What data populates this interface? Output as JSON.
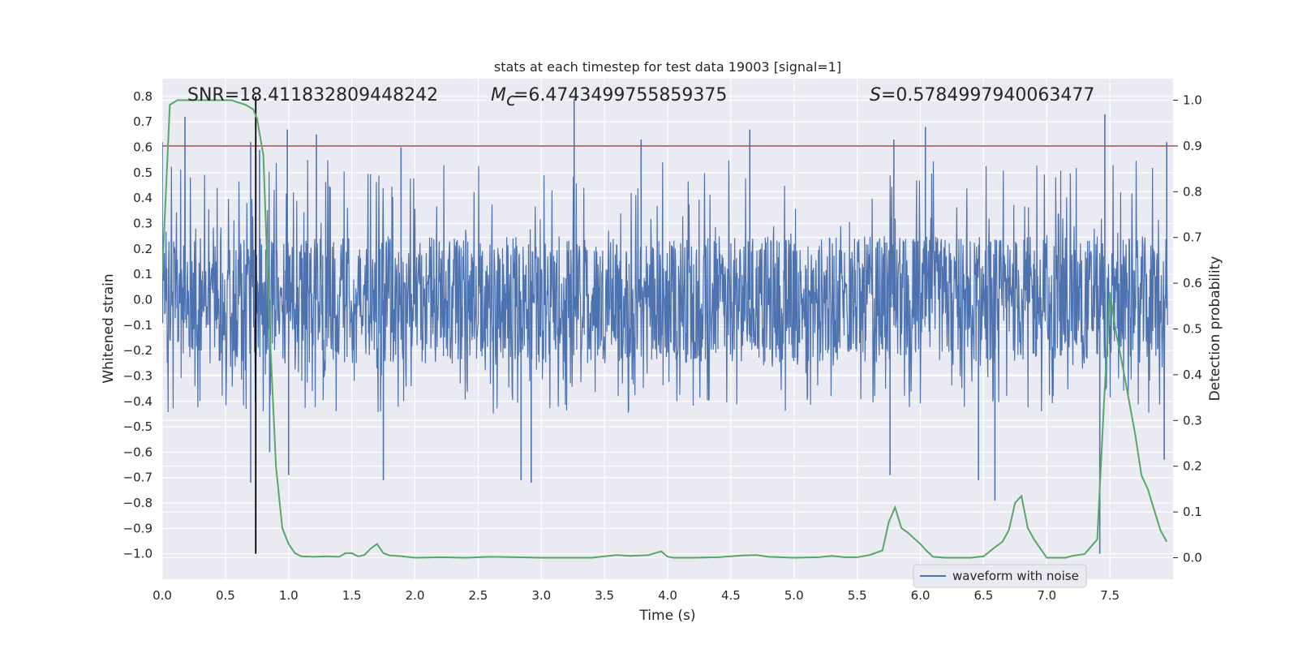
{
  "chart_data": {
    "type": "line",
    "title": "stats at each timestep for test data 19003 [signal=1]",
    "xlabel": "Time (s)",
    "ylabel": "Whitened strain",
    "y2label": "Detection probability",
    "xlim": [
      0.0,
      8.0
    ],
    "ylim": [
      -1.1,
      0.87
    ],
    "y2lim": [
      -0.047,
      1.047
    ],
    "grid": true,
    "xticks": [
      "0.0",
      "0.5",
      "1.0",
      "1.5",
      "2.0",
      "2.5",
      "3.0",
      "3.5",
      "4.0",
      "4.5",
      "5.0",
      "5.5",
      "6.0",
      "6.5",
      "7.0",
      "7.5"
    ],
    "yticks": [
      "0.8",
      "0.7",
      "0.6",
      "0.5",
      "0.4",
      "0.3",
      "0.2",
      "0.1",
      "0.0",
      "−0.1",
      "−0.2",
      "−0.3",
      "−0.4",
      "−0.5",
      "−0.6",
      "−0.7",
      "−0.8",
      "−0.9",
      "−1.0"
    ],
    "y2ticks": [
      "1.0",
      "0.9",
      "0.8",
      "0.7",
      "0.6",
      "0.5",
      "0.4",
      "0.3",
      "0.2",
      "0.1",
      "0.0"
    ],
    "annotations": {
      "snr": "SNR=18.411832809448242",
      "mc": "=6.4743499755859375",
      "s": "=0.5784997940063477"
    },
    "series": [
      {
        "name": "waveform with noise",
        "color": "#4c72b0",
        "axis": "left",
        "envelope": {
          "core_amplitude": 0.25,
          "typical_peak_max": 0.55,
          "typical_peak_min": -0.45,
          "notable_peaks": [
            {
              "t": 0.0,
              "v": 0.62
            },
            {
              "t": 0.18,
              "v": 0.72
            },
            {
              "t": 0.7,
              "v": 0.62
            },
            {
              "t": 0.77,
              "v": 0.59
            },
            {
              "t": 0.99,
              "v": 0.67
            },
            {
              "t": 1.22,
              "v": 0.65
            },
            {
              "t": 1.89,
              "v": 0.6
            },
            {
              "t": 3.26,
              "v": 0.79
            },
            {
              "t": 3.79,
              "v": 0.63
            },
            {
              "t": 4.65,
              "v": 0.67
            },
            {
              "t": 5.79,
              "v": 0.63
            },
            {
              "t": 6.04,
              "v": 0.68
            },
            {
              "t": 7.46,
              "v": 0.73
            },
            {
              "t": 7.95,
              "v": 0.62
            }
          ],
          "notable_troughs": [
            {
              "t": 0.7,
              "v": -0.72
            },
            {
              "t": 0.85,
              "v": -0.6
            },
            {
              "t": 1.0,
              "v": -0.69
            },
            {
              "t": 1.75,
              "v": -0.71
            },
            {
              "t": 2.84,
              "v": -0.71
            },
            {
              "t": 2.92,
              "v": -0.72
            },
            {
              "t": 5.76,
              "v": -0.69
            },
            {
              "t": 6.46,
              "v": -0.71
            },
            {
              "t": 6.59,
              "v": -0.79
            },
            {
              "t": 7.42,
              "v": -1.0
            },
            {
              "t": 7.93,
              "v": -0.63
            }
          ]
        }
      },
      {
        "name": "",
        "color": "#55a868",
        "axis": "right",
        "x": [
          0.0,
          0.06,
          0.12,
          0.2,
          0.3,
          0.4,
          0.5,
          0.55,
          0.6,
          0.66,
          0.72,
          0.75,
          0.8,
          0.85,
          0.9,
          0.95,
          1.0,
          1.05,
          1.1,
          1.2,
          1.3,
          1.4,
          1.45,
          1.5,
          1.55,
          1.6,
          1.65,
          1.7,
          1.75,
          1.8,
          1.9,
          2.0,
          2.2,
          2.4,
          2.6,
          2.8,
          3.0,
          3.2,
          3.4,
          3.5,
          3.6,
          3.7,
          3.8,
          3.85,
          3.9,
          3.95,
          4.0,
          4.05,
          4.2,
          4.4,
          4.6,
          4.7,
          4.8,
          5.0,
          5.2,
          5.3,
          5.4,
          5.5,
          5.6,
          5.7,
          5.75,
          5.8,
          5.85,
          5.9,
          6.0,
          6.05,
          6.1,
          6.2,
          6.4,
          6.5,
          6.6,
          6.65,
          6.7,
          6.75,
          6.8,
          6.85,
          6.9,
          7.0,
          7.1,
          7.15,
          7.2,
          7.3,
          7.4,
          7.45,
          7.5,
          7.55,
          7.6,
          7.7,
          7.75,
          7.8,
          7.9,
          7.95
        ],
        "values": [
          0.62,
          0.99,
          1.0,
          1.0,
          1.0,
          1.0,
          1.0,
          1.0,
          0.995,
          0.99,
          0.98,
          0.96,
          0.88,
          0.5,
          0.2,
          0.065,
          0.03,
          0.01,
          0.003,
          0.002,
          0.003,
          0.002,
          0.01,
          0.01,
          0.003,
          0.006,
          0.02,
          0.03,
          0.01,
          0.005,
          0.003,
          0.0,
          0.001,
          0.0,
          0.002,
          0.001,
          0.0,
          0.0,
          0.0,
          0.003,
          0.006,
          0.004,
          0.005,
          0.006,
          0.01,
          0.014,
          0.002,
          0.0,
          0.0,
          0.001,
          0.005,
          0.006,
          0.002,
          0.0,
          0.001,
          0.004,
          0.001,
          0.001,
          0.006,
          0.016,
          0.078,
          0.11,
          0.065,
          0.055,
          0.03,
          0.015,
          0.002,
          0.0,
          0.0,
          0.003,
          0.025,
          0.035,
          0.06,
          0.12,
          0.135,
          0.065,
          0.04,
          0.0,
          0.0,
          0.0,
          0.004,
          0.008,
          0.04,
          0.32,
          0.58,
          0.49,
          0.42,
          0.27,
          0.18,
          0.15,
          0.06,
          0.035
        ]
      }
    ],
    "reference_lines": [
      {
        "type": "horizontal",
        "axis": "right",
        "value": 0.9,
        "color": "#c44e52"
      },
      {
        "type": "vertical",
        "x": 0.74,
        "from": -1.0,
        "to": 0.8,
        "color": "#000000"
      }
    ],
    "legend": {
      "position": "bottom-right",
      "entries": [
        "waveform with noise"
      ]
    }
  }
}
